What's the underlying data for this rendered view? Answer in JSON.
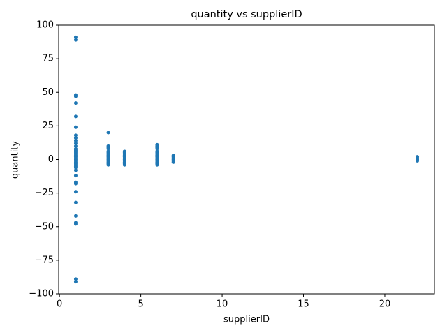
{
  "chart_data": {
    "type": "scatter",
    "title": "quantity vs supplierID",
    "x_label": "supplierID",
    "y_label": "quantity",
    "color": "#1f77b4",
    "x": [
      1,
      1,
      1,
      1,
      1,
      1,
      1,
      1,
      1,
      1,
      1,
      1,
      1,
      1,
      1,
      1,
      1,
      1,
      1,
      1,
      1,
      1,
      1,
      1,
      1,
      1,
      1,
      1,
      1,
      1,
      1,
      1,
      1,
      1,
      1,
      1,
      1,
      1,
      3,
      3,
      3,
      3,
      3,
      3,
      3,
      3,
      3,
      3,
      3,
      3,
      3,
      3,
      3,
      4,
      4,
      4,
      4,
      4,
      4,
      4,
      4,
      4,
      4,
      4,
      6,
      6,
      6,
      6,
      6,
      6,
      6,
      6,
      6,
      6,
      6,
      6,
      6,
      6,
      6,
      7,
      7,
      7,
      7,
      7,
      7,
      22,
      22,
      22,
      22
    ],
    "values": [
      91,
      89,
      48,
      47,
      42,
      32,
      24,
      18,
      16,
      14,
      12,
      10,
      8,
      7,
      6,
      5,
      4,
      3,
      2,
      1,
      0,
      -1,
      -2,
      -3,
      -4,
      -5,
      -6,
      -8,
      -12,
      -17,
      -18,
      -24,
      -32,
      -42,
      -47,
      -48,
      -89,
      -91,
      20,
      10,
      9,
      8,
      6,
      5,
      4,
      3,
      2,
      1,
      0,
      -1,
      -2,
      -3,
      -4,
      6,
      5,
      4,
      3,
      2,
      1,
      0,
      -1,
      -2,
      -3,
      -4,
      11,
      10,
      9,
      8,
      6,
      5,
      4,
      3,
      2,
      1,
      0,
      -1,
      -2,
      -3,
      -4,
      3,
      2,
      1,
      0,
      -1,
      -2,
      2,
      1,
      0,
      -1
    ],
    "xlim": [
      -0.05,
      23.05
    ],
    "xticks": [
      0,
      5,
      10,
      15,
      20
    ],
    "ylim": [
      -100,
      100
    ],
    "yticks": [
      {
        "value": -100,
        "label": "−100"
      },
      {
        "value": -75,
        "label": "−75"
      },
      {
        "value": -50,
        "label": "−50"
      },
      {
        "value": -25,
        "label": "−25"
      },
      0,
      25,
      50,
      75,
      100
    ]
  }
}
